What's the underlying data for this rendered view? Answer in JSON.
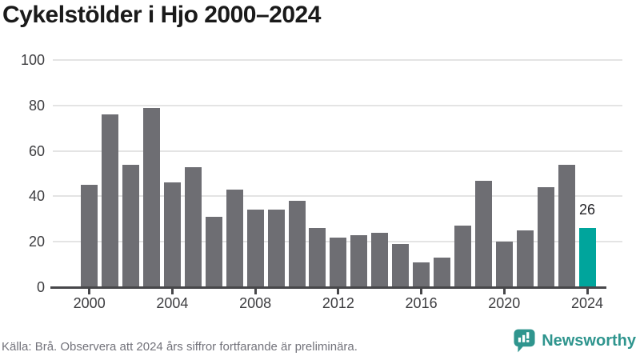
{
  "title": "Cykelstölder i Hjo 2000–2024",
  "footer": {
    "source_note": "Källa: Brå. Observera att 2024 års siffror fortfarande är preliminära.",
    "brand_name": "Newsworthy",
    "brand_icon": "bar-chart-speech-bubble-icon"
  },
  "colors": {
    "bar_default": "#6e6e73",
    "bar_highlight": "#00a59c",
    "gridline": "#e4e4e4",
    "axis": "#47474a",
    "title_text": "#1a1a1a",
    "tick_text": "#3d3d40",
    "source_text": "#73737b",
    "brand_teal": "#2f958e"
  },
  "chart_data": {
    "type": "bar",
    "title": "Cykelstölder i Hjo 2000–2024",
    "x": [
      2000,
      2001,
      2002,
      2003,
      2004,
      2005,
      2006,
      2007,
      2008,
      2009,
      2010,
      2011,
      2012,
      2013,
      2014,
      2015,
      2016,
      2017,
      2018,
      2019,
      2020,
      2021,
      2022,
      2023,
      2024
    ],
    "values": [
      45,
      76,
      54,
      79,
      46,
      53,
      31,
      43,
      34,
      34,
      38,
      26,
      22,
      23,
      24,
      19,
      11,
      13,
      27,
      47,
      20,
      25,
      44,
      54,
      26
    ],
    "highlight_index": 24,
    "highlight_label": "26",
    "xlabel": "",
    "ylabel": "",
    "ylim": [
      0,
      100
    ],
    "yticks": [
      0,
      20,
      40,
      60,
      80,
      100
    ],
    "xticks": [
      2000,
      2004,
      2008,
      2012,
      2016,
      2020,
      2024
    ],
    "grid": true,
    "legend": "none"
  }
}
